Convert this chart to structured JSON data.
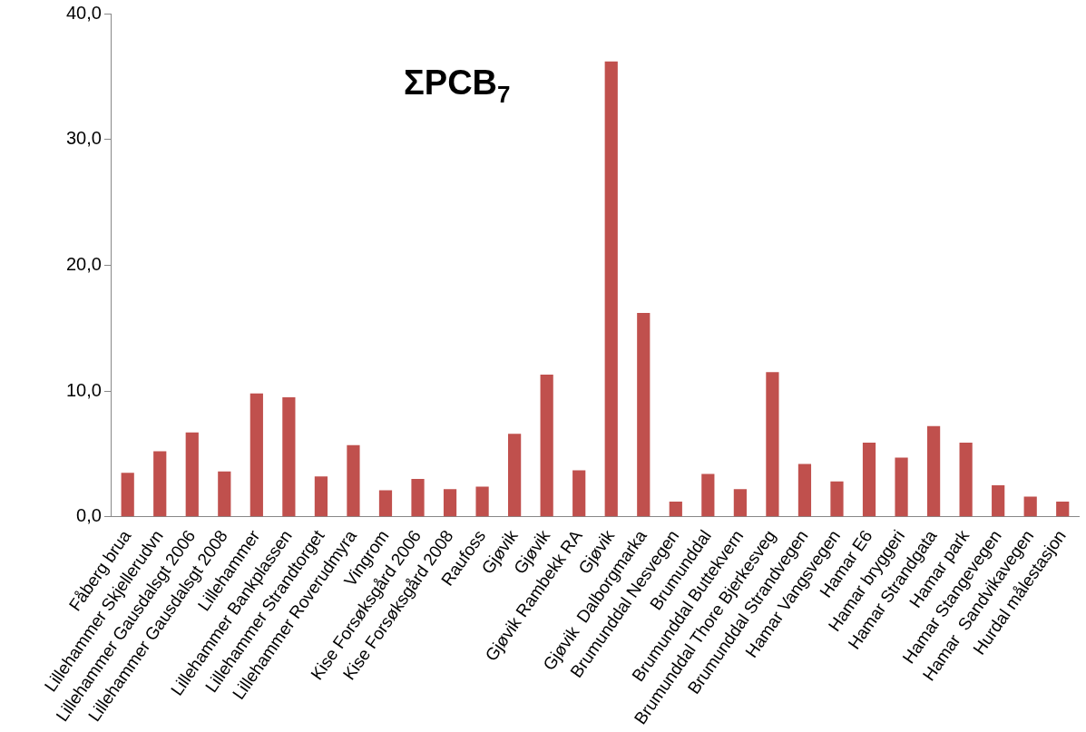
{
  "chart_data": {
    "type": "bar",
    "title": "ΣPCB$_{7}$",
    "categories": [
      "Fåberg brua",
      "Lillehammer Skjellerudvn",
      "Lillehammer Gausdalsgt 2006",
      "Lillehammer Gausdalsgt 2008",
      "Lillehammer",
      "Lillehammer Bankplassen",
      "Lillehammer Strandtorget",
      "Lillehammer Roverudmyra",
      "Vingrom",
      "Kise Forsøksgård 2006",
      "Kise Forsøksgård 2008",
      "Raufoss",
      "Gjøvik",
      "Gjøvik",
      "Gjøvik Rambekk RA",
      "Gjøvik",
      "Gjøvik  Dalborgmarka",
      "Brumunddal Nesvegen",
      "Brumunddal",
      "Brumunddal Buttekvern",
      "Brumunddal Thore Bjerkesveg",
      "Brumunddal Strandvegen",
      "Hamar Vangsvegen",
      "Hamar E6",
      "Hamar bryggeri",
      "Hamar Strandgata",
      "Hamar park",
      "Hamar Stangevegen",
      "Hamar  Sandvikavegen",
      "Hurdal målestasjon"
    ],
    "values": [
      3.5,
      5.2,
      6.7,
      3.6,
      9.8,
      9.5,
      3.2,
      5.7,
      2.1,
      3.0,
      2.2,
      2.4,
      6.6,
      11.3,
      3.7,
      36.2,
      16.2,
      1.2,
      3.4,
      2.2,
      11.5,
      4.2,
      2.8,
      5.9,
      4.7,
      7.2,
      5.9,
      2.5,
      1.6,
      1.2
    ],
    "color": "#c0504d",
    "ylim": [
      0,
      40
    ],
    "yticks": [
      {
        "value": 0,
        "label": "0,0"
      },
      {
        "value": 10,
        "label": "10,0"
      },
      {
        "value": 20,
        "label": "20,0"
      },
      {
        "value": 30,
        "label": "30,0"
      },
      {
        "value": 40,
        "label": "40,0"
      }
    ],
    "grid": false,
    "legend": false
  }
}
